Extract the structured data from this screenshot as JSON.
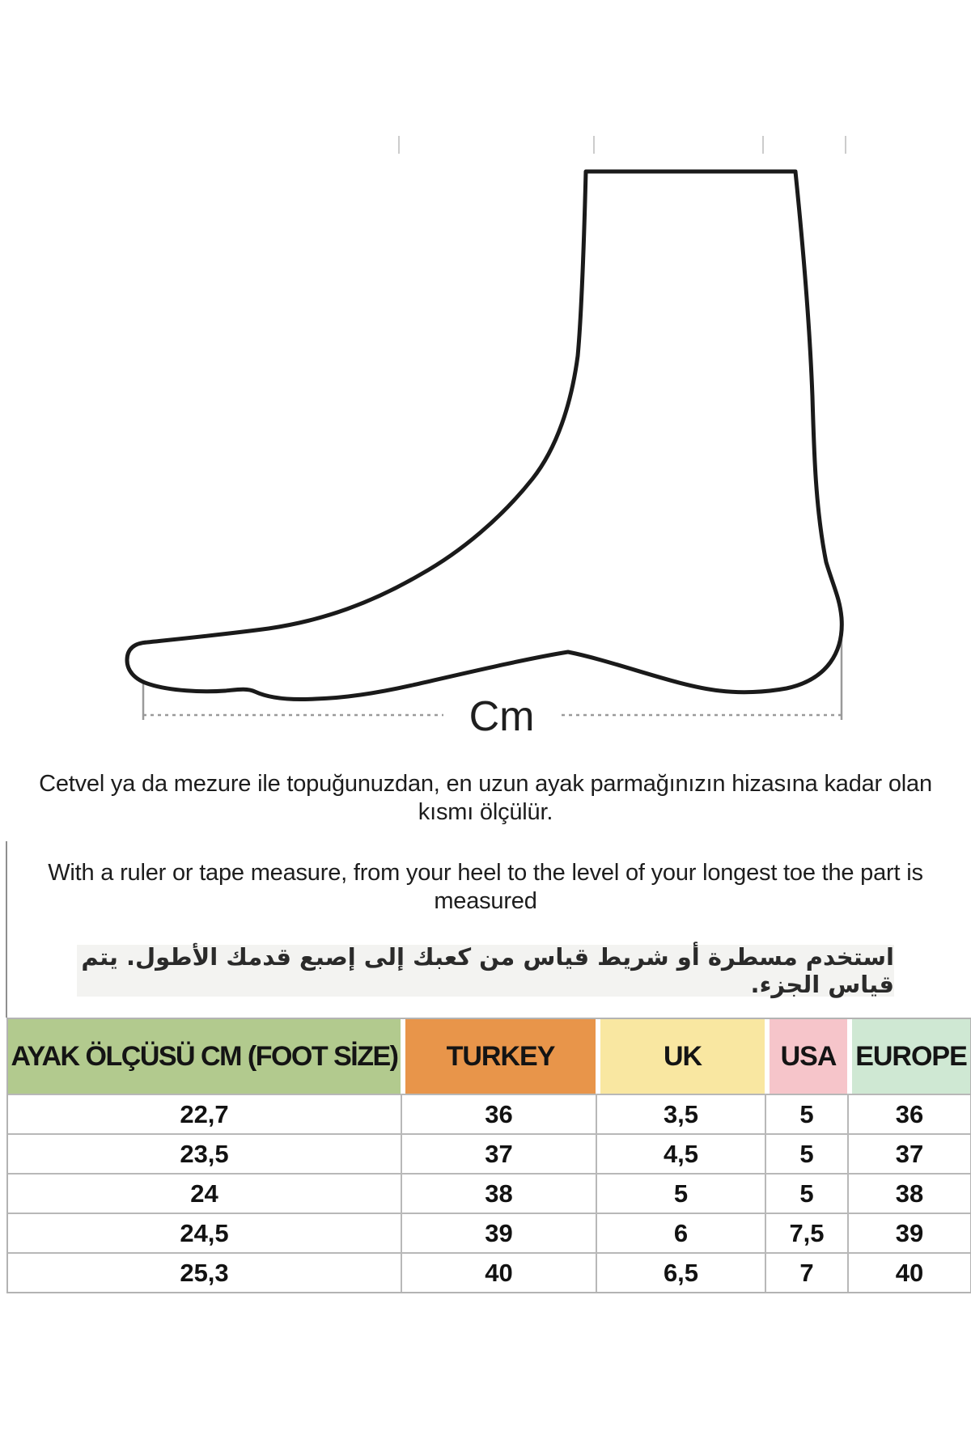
{
  "diagram": {
    "cm_label": "Cm"
  },
  "instructions": {
    "turkish_line": "Cetvel ya da mezure ile topuğunuzdan, en uzun ayak parmağınızın hizasına kadar olan kısmı ölçülür.",
    "english_line": "With a ruler or tape measure, from your heel to the level of your longest toe the part is measured",
    "arabic_line": "استخدم مسطرة أو شريط قياس من كعبك إلى إصبع قدمك الأطول.  يتم قياس الجزء."
  },
  "size_table": {
    "columns": [
      {
        "label": "AYAK ÖLÇÜSÜ CM (FOOT SİZE)",
        "color": "#b2ca8e"
      },
      {
        "label": "TURKEY",
        "color": "#e8954a"
      },
      {
        "label": "UK",
        "color": "#f9e7a1"
      },
      {
        "label": "USA",
        "color": "#f6c5ca"
      },
      {
        "label": "EUROPE",
        "color": "#cfe8d3"
      }
    ],
    "rows": [
      [
        "22,7",
        "36",
        "3,5",
        "5",
        "36"
      ],
      [
        "23,5",
        "37",
        "4,5",
        "5",
        "37"
      ],
      [
        "24",
        "38",
        "5",
        "5",
        "38"
      ],
      [
        "24,5",
        "39",
        "6",
        "7,5",
        "39"
      ],
      [
        "25,3",
        "40",
        "6,5",
        "7",
        "40"
      ]
    ]
  },
  "colors": {
    "outline": "#1a1a1a",
    "measure_gray": "#9a9a9a",
    "table_border": "#b8b8b8"
  }
}
